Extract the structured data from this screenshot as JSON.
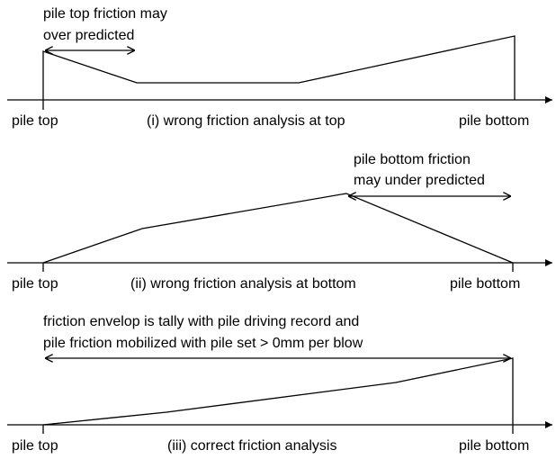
{
  "panels": [
    {
      "annotation": [
        "pile top friction may",
        "over predicted"
      ],
      "start_label": "pile top",
      "caption": "(i) wrong friction analysis at top",
      "end_label": "pile bottom"
    },
    {
      "annotation": [
        "pile bottom friction",
        "may under predicted"
      ],
      "start_label": "pile top",
      "caption": "(ii) wrong friction analysis at bottom",
      "end_label": "pile bottom"
    },
    {
      "annotation": [
        "friction envelop is tally with pile driving record and",
        "pile friction mobilized with pile set > 0mm per blow"
      ],
      "start_label": "pile top",
      "caption": "(iii) correct friction analysis",
      "end_label": "pile bottom"
    }
  ]
}
